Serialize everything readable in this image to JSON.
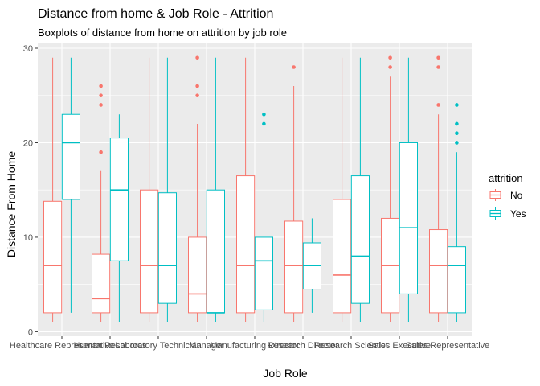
{
  "chart_data": {
    "type": "boxplot",
    "title": "Distance from home & Job Role - Attrition",
    "subtitle": "Boxplots of distance from home on attrition by job role",
    "xlabel": "Job Role",
    "ylabel": "Distance From Home",
    "ylim": [
      0,
      30
    ],
    "yticks": [
      0,
      10,
      20,
      30
    ],
    "grid": true,
    "legend": {
      "title": "attrition",
      "position": "right",
      "entries": [
        "No",
        "Yes"
      ]
    },
    "colors": {
      "No": "#F8766D",
      "Yes": "#00BFC4",
      "panel": "#EBEBEB",
      "grid": "#FFFFFF"
    },
    "categories": [
      "Healthcare Representative",
      "Human Resources",
      "Laboratory Technician",
      "Manager",
      "Manufacturing Director",
      "Research Director",
      "Research Scientist",
      "Sales Executive",
      "Sales Representative"
    ],
    "series": [
      {
        "name": "No",
        "boxes": [
          {
            "min": 1,
            "q1": 2,
            "median": 7,
            "q3": 13.8,
            "max": 29,
            "outliers": []
          },
          {
            "min": 1,
            "q1": 2,
            "median": 3.5,
            "q3": 8.2,
            "max": 17,
            "outliers": [
              19,
              24,
              25,
              26
            ]
          },
          {
            "min": 1,
            "q1": 2,
            "median": 7,
            "q3": 15,
            "max": 29,
            "outliers": []
          },
          {
            "min": 1,
            "q1": 2,
            "median": 4,
            "q3": 10,
            "max": 22,
            "outliers": [
              25,
              26,
              29
            ]
          },
          {
            "min": 1,
            "q1": 2,
            "median": 7,
            "q3": 16.5,
            "max": 29,
            "outliers": []
          },
          {
            "min": 1,
            "q1": 2,
            "median": 7,
            "q3": 11.7,
            "max": 26,
            "outliers": [
              28
            ]
          },
          {
            "min": 1,
            "q1": 2,
            "median": 6,
            "q3": 14,
            "max": 29,
            "outliers": []
          },
          {
            "min": 1,
            "q1": 2,
            "median": 7,
            "q3": 12,
            "max": 27,
            "outliers": [
              28,
              29
            ]
          },
          {
            "min": 1,
            "q1": 2,
            "median": 7,
            "q3": 10.8,
            "max": 23,
            "outliers": [
              24,
              28,
              29
            ]
          }
        ]
      },
      {
        "name": "Yes",
        "boxes": [
          {
            "min": 2,
            "q1": 14,
            "median": 20,
            "q3": 23,
            "max": 29,
            "outliers": []
          },
          {
            "min": 1,
            "q1": 7.5,
            "median": 15,
            "q3": 20.5,
            "max": 23,
            "outliers": []
          },
          {
            "min": 1,
            "q1": 3,
            "median": 7,
            "q3": 14.7,
            "max": 29,
            "outliers": []
          },
          {
            "min": 1,
            "q1": 2,
            "median": 2,
            "q3": 15,
            "max": 29,
            "outliers": []
          },
          {
            "min": 1,
            "q1": 2.3,
            "median": 7.5,
            "q3": 10,
            "max": 10,
            "outliers": [
              22,
              23
            ]
          },
          {
            "min": 2,
            "q1": 4.5,
            "median": 7,
            "q3": 9.4,
            "max": 12,
            "outliers": []
          },
          {
            "min": 1,
            "q1": 3,
            "median": 8,
            "q3": 16.5,
            "max": 29,
            "outliers": []
          },
          {
            "min": 1,
            "q1": 4,
            "median": 11,
            "q3": 20,
            "max": 29,
            "outliers": []
          },
          {
            "min": 1,
            "q1": 2,
            "median": 7,
            "q3": 9,
            "max": 19,
            "outliers": [
              20,
              21,
              22,
              24
            ]
          }
        ]
      }
    ]
  }
}
